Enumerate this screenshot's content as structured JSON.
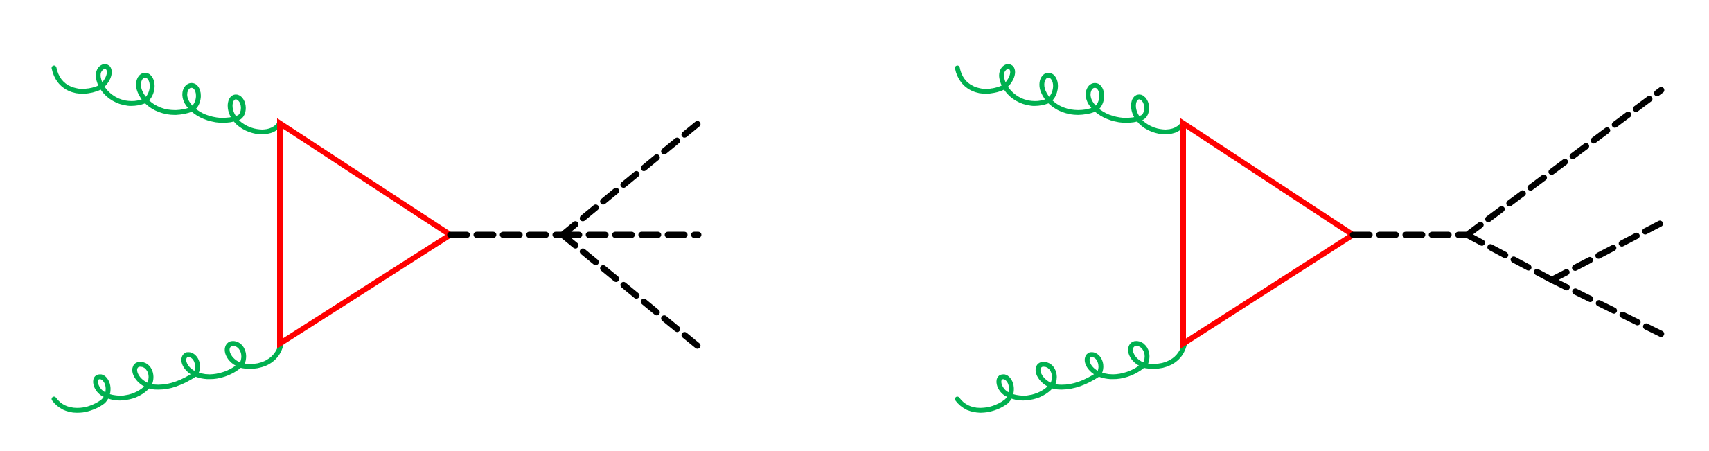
{
  "colors": {
    "gluon": "#00b050",
    "quark_loop": "#ff0000",
    "scalar": "#000000"
  },
  "diagrams": [
    {
      "id": "triple-higgs-contact",
      "external_gluons": 2,
      "loop": "triangle",
      "internal_scalar": 1,
      "final_state_scalars": 3,
      "vertex_type": "quartic"
    },
    {
      "id": "triple-higgs-cascade",
      "external_gluons": 2,
      "loop": "triangle",
      "internal_scalar": 1,
      "final_state_scalars": 3,
      "vertex_type": "two-trilinear"
    }
  ]
}
